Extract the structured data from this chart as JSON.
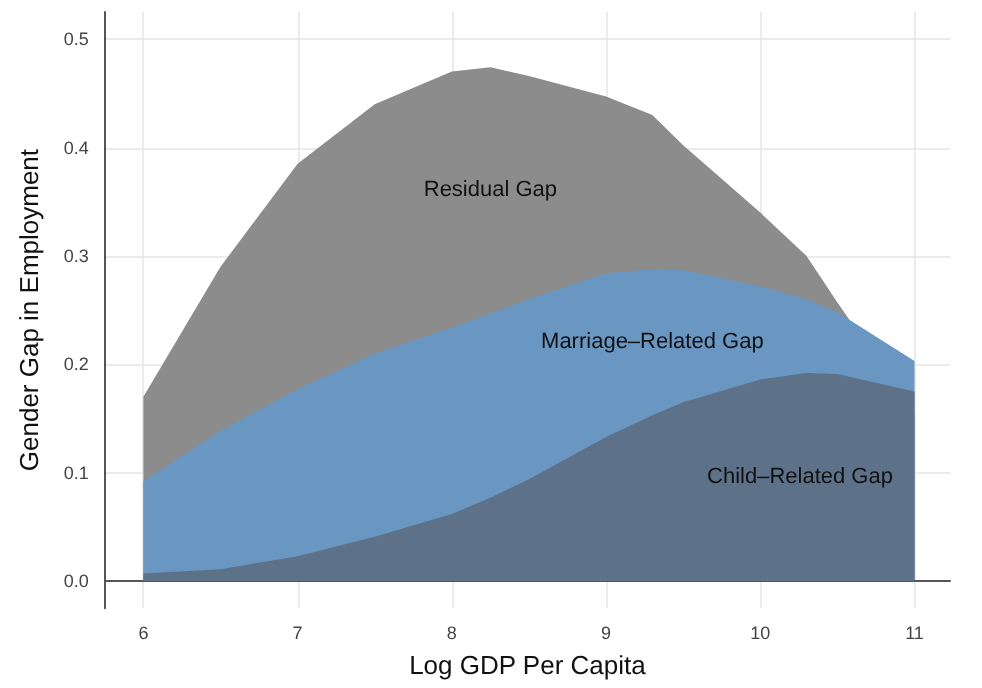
{
  "chart_data": {
    "type": "area",
    "xlabel": "Log GDP Per Capita",
    "ylabel": "Gender Gap in Employment",
    "x": [
      6,
      6.5,
      7,
      7.5,
      8,
      8.25,
      8.5,
      9,
      9.3,
      9.5,
      10,
      10.3,
      10.5,
      11
    ],
    "series": [
      {
        "name": "Residual Gap",
        "color": "#8c8c8c",
        "values": [
          0.17,
          0.29,
          0.385,
          0.44,
          0.47,
          0.474,
          0.466,
          0.447,
          0.43,
          0.402,
          0.34,
          0.3,
          0.257,
          0.154
        ]
      },
      {
        "name": "Marriage–Related Gap",
        "color": "#6a97c2",
        "values": [
          0.092,
          0.139,
          0.177,
          0.21,
          0.234,
          0.247,
          0.26,
          0.284,
          0.288,
          0.287,
          0.272,
          0.26,
          0.248,
          0.203
        ]
      },
      {
        "name": "Child–Related Gap",
        "color": "#5d7189",
        "values": [
          0.007,
          0.011,
          0.023,
          0.041,
          0.062,
          0.077,
          0.094,
          0.133,
          0.153,
          0.165,
          0.186,
          0.192,
          0.191,
          0.175
        ]
      }
    ],
    "xlim": [
      5.75,
      11.23
    ],
    "ylim": [
      -0.025,
      0.525
    ],
    "xticks": [
      6,
      7,
      8,
      9,
      10,
      11
    ],
    "yticks": [
      {
        "value": 0,
        "label": "0.0"
      },
      0.1,
      0.2,
      0.3,
      0.4,
      0.5
    ],
    "grid": true,
    "marker": "none"
  }
}
